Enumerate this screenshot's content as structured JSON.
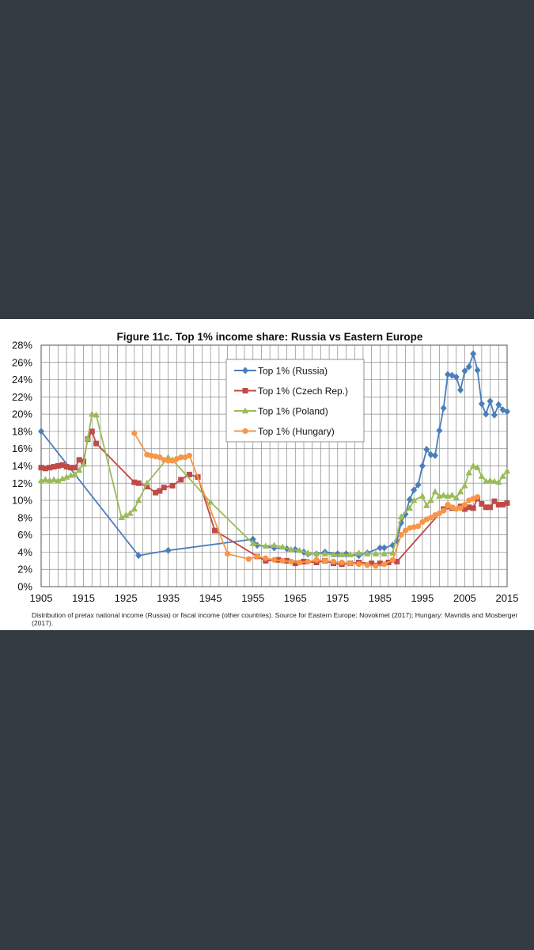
{
  "caption": "Distribution of pretax national income (Russia) or fiscal income (other countries). Source for Eastern Europe: Novokmet (2017); Hungary: Mavridis and Mosberger (2017).",
  "chart_data": {
    "type": "line",
    "title": "Figure 11c. Top 1% income share: Russia vs Eastern Europe",
    "xlabel": "",
    "ylabel": "",
    "xlim": [
      1905,
      2015
    ],
    "ylim": [
      0,
      28
    ],
    "x_ticks": [
      1905,
      1915,
      1925,
      1935,
      1945,
      1955,
      1965,
      1975,
      1985,
      1995,
      2005,
      2015
    ],
    "y_ticks": [
      0,
      2,
      4,
      6,
      8,
      10,
      12,
      14,
      16,
      18,
      20,
      22,
      24,
      26,
      28
    ],
    "y_tick_format": "%",
    "grid": true,
    "legend_position": "top-center",
    "series": [
      {
        "name": "Top 1% (Russia)",
        "color": "#4a7ebb",
        "marker": "diamond",
        "points": [
          [
            1905,
            18.0
          ],
          [
            1928,
            3.6
          ],
          [
            1935,
            4.2
          ],
          [
            1955,
            5.5
          ],
          [
            1956,
            4.8
          ],
          [
            1960,
            4.5
          ],
          [
            1963,
            4.4
          ],
          [
            1965,
            4.3
          ],
          [
            1967,
            4.0
          ],
          [
            1968,
            3.8
          ],
          [
            1970,
            3.8
          ],
          [
            1972,
            4.0
          ],
          [
            1975,
            3.8
          ],
          [
            1977,
            3.8
          ],
          [
            1980,
            3.6
          ],
          [
            1982,
            3.9
          ],
          [
            1985,
            4.5
          ],
          [
            1986,
            4.5
          ],
          [
            1988,
            4.8
          ],
          [
            1989,
            5.3
          ],
          [
            1990,
            7.4
          ],
          [
            1991,
            8.4
          ],
          [
            1992,
            10.1
          ],
          [
            1993,
            11.2
          ],
          [
            1994,
            11.8
          ],
          [
            1995,
            14.0
          ],
          [
            1996,
            15.9
          ],
          [
            1997,
            15.3
          ],
          [
            1998,
            15.2
          ],
          [
            1999,
            18.1
          ],
          [
            2000,
            20.7
          ],
          [
            2001,
            24.6
          ],
          [
            2002,
            24.5
          ],
          [
            2003,
            24.3
          ],
          [
            2004,
            22.8
          ],
          [
            2005,
            25.0
          ],
          [
            2006,
            25.5
          ],
          [
            2007,
            27.0
          ],
          [
            2008,
            25.1
          ],
          [
            2009,
            21.2
          ],
          [
            2010,
            20.0
          ],
          [
            2011,
            21.5
          ],
          [
            2012,
            19.9
          ],
          [
            2013,
            21.1
          ],
          [
            2014,
            20.5
          ],
          [
            2015,
            20.3
          ]
        ]
      },
      {
        "name": "Top 1% (Czech Rep.)",
        "color": "#be4b48",
        "marker": "square",
        "points": [
          [
            1905,
            13.8
          ],
          [
            1906,
            13.7
          ],
          [
            1907,
            13.8
          ],
          [
            1908,
            13.9
          ],
          [
            1909,
            14.0
          ],
          [
            1910,
            14.1
          ],
          [
            1911,
            13.9
          ],
          [
            1912,
            13.8
          ],
          [
            1913,
            13.8
          ],
          [
            1914,
            14.7
          ],
          [
            1915,
            14.5
          ],
          [
            1916,
            17.1
          ],
          [
            1917,
            18.0
          ],
          [
            1918,
            16.6
          ],
          [
            1927,
            12.1
          ],
          [
            1928,
            12.0
          ],
          [
            1930,
            11.6
          ],
          [
            1932,
            10.9
          ],
          [
            1933,
            11.1
          ],
          [
            1934,
            11.5
          ],
          [
            1936,
            11.7
          ],
          [
            1938,
            12.4
          ],
          [
            1940,
            13.0
          ],
          [
            1942,
            12.7
          ],
          [
            1946,
            6.5
          ],
          [
            1956,
            3.5
          ],
          [
            1958,
            3.0
          ],
          [
            1961,
            3.1
          ],
          [
            1963,
            3.0
          ],
          [
            1965,
            2.7
          ],
          [
            1967,
            2.9
          ],
          [
            1970,
            2.8
          ],
          [
            1972,
            3.0
          ],
          [
            1974,
            2.7
          ],
          [
            1976,
            2.6
          ],
          [
            1978,
            2.7
          ],
          [
            1980,
            2.8
          ],
          [
            1983,
            2.7
          ],
          [
            1985,
            2.7
          ],
          [
            1987,
            2.8
          ],
          [
            1989,
            2.9
          ],
          [
            2000,
            9.0
          ],
          [
            2002,
            9.1
          ],
          [
            2004,
            9.3
          ],
          [
            2005,
            9.0
          ],
          [
            2006,
            9.2
          ],
          [
            2007,
            9.1
          ],
          [
            2008,
            10.2
          ],
          [
            2009,
            9.6
          ],
          [
            2010,
            9.2
          ],
          [
            2011,
            9.2
          ],
          [
            2012,
            9.9
          ],
          [
            2013,
            9.5
          ],
          [
            2014,
            9.5
          ],
          [
            2015,
            9.7
          ]
        ]
      },
      {
        "name": "Top 1% (Poland)",
        "color": "#9bbb59",
        "marker": "triangle",
        "points": [
          [
            1905,
            12.3
          ],
          [
            1906,
            12.4
          ],
          [
            1907,
            12.3
          ],
          [
            1908,
            12.4
          ],
          [
            1909,
            12.3
          ],
          [
            1910,
            12.5
          ],
          [
            1911,
            12.7
          ],
          [
            1912,
            12.9
          ],
          [
            1913,
            13.0
          ],
          [
            1914,
            13.5
          ],
          [
            1915,
            14.2
          ],
          [
            1916,
            17.2
          ],
          [
            1917,
            20.0
          ],
          [
            1918,
            19.9
          ],
          [
            1924,
            8.0
          ],
          [
            1925,
            8.3
          ],
          [
            1926,
            8.5
          ],
          [
            1927,
            9.0
          ],
          [
            1928,
            10.0
          ],
          [
            1930,
            12.0
          ],
          [
            1935,
            15.0
          ],
          [
            1936,
            14.7
          ],
          [
            1945,
            9.8
          ],
          [
            1955,
            5.0
          ],
          [
            1958,
            4.7
          ],
          [
            1960,
            4.8
          ],
          [
            1962,
            4.6
          ],
          [
            1964,
            4.3
          ],
          [
            1966,
            4.2
          ],
          [
            1968,
            3.9
          ],
          [
            1970,
            3.8
          ],
          [
            1972,
            3.8
          ],
          [
            1974,
            3.7
          ],
          [
            1976,
            3.7
          ],
          [
            1978,
            3.7
          ],
          [
            1980,
            3.9
          ],
          [
            1982,
            3.8
          ],
          [
            1984,
            3.8
          ],
          [
            1986,
            3.8
          ],
          [
            1988,
            3.9
          ],
          [
            1990,
            8.1
          ],
          [
            1992,
            9.1
          ],
          [
            1993,
            10.0
          ],
          [
            1995,
            10.5
          ],
          [
            1996,
            9.4
          ],
          [
            1997,
            10.0
          ],
          [
            1998,
            11.0
          ],
          [
            1999,
            10.5
          ],
          [
            2000,
            10.6
          ],
          [
            2001,
            10.5
          ],
          [
            2002,
            10.6
          ],
          [
            2003,
            10.3
          ],
          [
            2004,
            11.0
          ],
          [
            2005,
            11.7
          ],
          [
            2006,
            13.2
          ],
          [
            2007,
            14.0
          ],
          [
            2008,
            13.8
          ],
          [
            2009,
            12.8
          ],
          [
            2010,
            12.2
          ],
          [
            2011,
            12.3
          ],
          [
            2012,
            12.2
          ],
          [
            2013,
            12.1
          ],
          [
            2014,
            12.8
          ],
          [
            2015,
            13.4
          ]
        ]
      },
      {
        "name": "Top 1% (Hungary)",
        "color": "#f79646",
        "marker": "circle",
        "points": [
          [
            1927,
            17.8
          ],
          [
            1930,
            15.3
          ],
          [
            1931,
            15.2
          ],
          [
            1932,
            15.1
          ],
          [
            1933,
            15.0
          ],
          [
            1934,
            14.7
          ],
          [
            1935,
            14.6
          ],
          [
            1936,
            14.6
          ],
          [
            1937,
            14.8
          ],
          [
            1938,
            15.0
          ],
          [
            1939,
            15.0
          ],
          [
            1940,
            15.2
          ],
          [
            1949,
            3.8
          ],
          [
            1954,
            3.2
          ],
          [
            1956,
            3.5
          ],
          [
            1958,
            3.3
          ],
          [
            1960,
            3.1
          ],
          [
            1962,
            3.0
          ],
          [
            1964,
            2.9
          ],
          [
            1966,
            2.8
          ],
          [
            1968,
            2.9
          ],
          [
            1970,
            3.1
          ],
          [
            1972,
            3.0
          ],
          [
            1974,
            2.9
          ],
          [
            1976,
            2.8
          ],
          [
            1978,
            2.7
          ],
          [
            1980,
            2.6
          ],
          [
            1982,
            2.5
          ],
          [
            1984,
            2.4
          ],
          [
            1986,
            2.6
          ],
          [
            1988,
            3.1
          ],
          [
            1990,
            6.0
          ],
          [
            1991,
            6.5
          ],
          [
            1992,
            6.8
          ],
          [
            1993,
            6.9
          ],
          [
            1994,
            7.0
          ],
          [
            1995,
            7.5
          ],
          [
            1996,
            7.8
          ],
          [
            1997,
            8.0
          ],
          [
            1998,
            8.3
          ],
          [
            1999,
            8.5
          ],
          [
            2000,
            8.8
          ],
          [
            2001,
            9.5
          ],
          [
            2002,
            9.2
          ],
          [
            2003,
            9.0
          ],
          [
            2004,
            9.1
          ],
          [
            2005,
            9.5
          ],
          [
            2006,
            10.0
          ],
          [
            2007,
            10.2
          ],
          [
            2008,
            10.4
          ]
        ]
      }
    ]
  }
}
